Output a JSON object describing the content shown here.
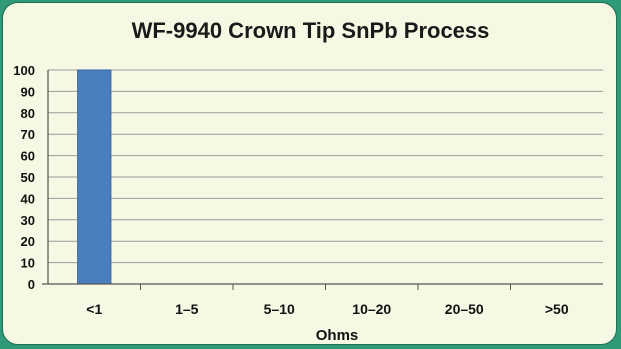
{
  "chart_data": {
    "type": "bar",
    "title": "WF-9940 Crown Tip SnPb Process",
    "xlabel": "Ohms",
    "ylabel": "",
    "categories": [
      "<1",
      "1–5",
      "5–10",
      "10–20",
      "20–50",
      ">50"
    ],
    "values": [
      100,
      0,
      0,
      0,
      0,
      0
    ],
    "ylim": [
      0,
      100
    ],
    "yticks": [
      0,
      10,
      20,
      30,
      40,
      50,
      60,
      70,
      80,
      90,
      100
    ],
    "grid": true,
    "legend": "none",
    "colors": {
      "bar": "#4a7ebf",
      "grid": "#9a9a9a",
      "panel": "#f7f8e4",
      "frame": "#2e9a78"
    }
  }
}
